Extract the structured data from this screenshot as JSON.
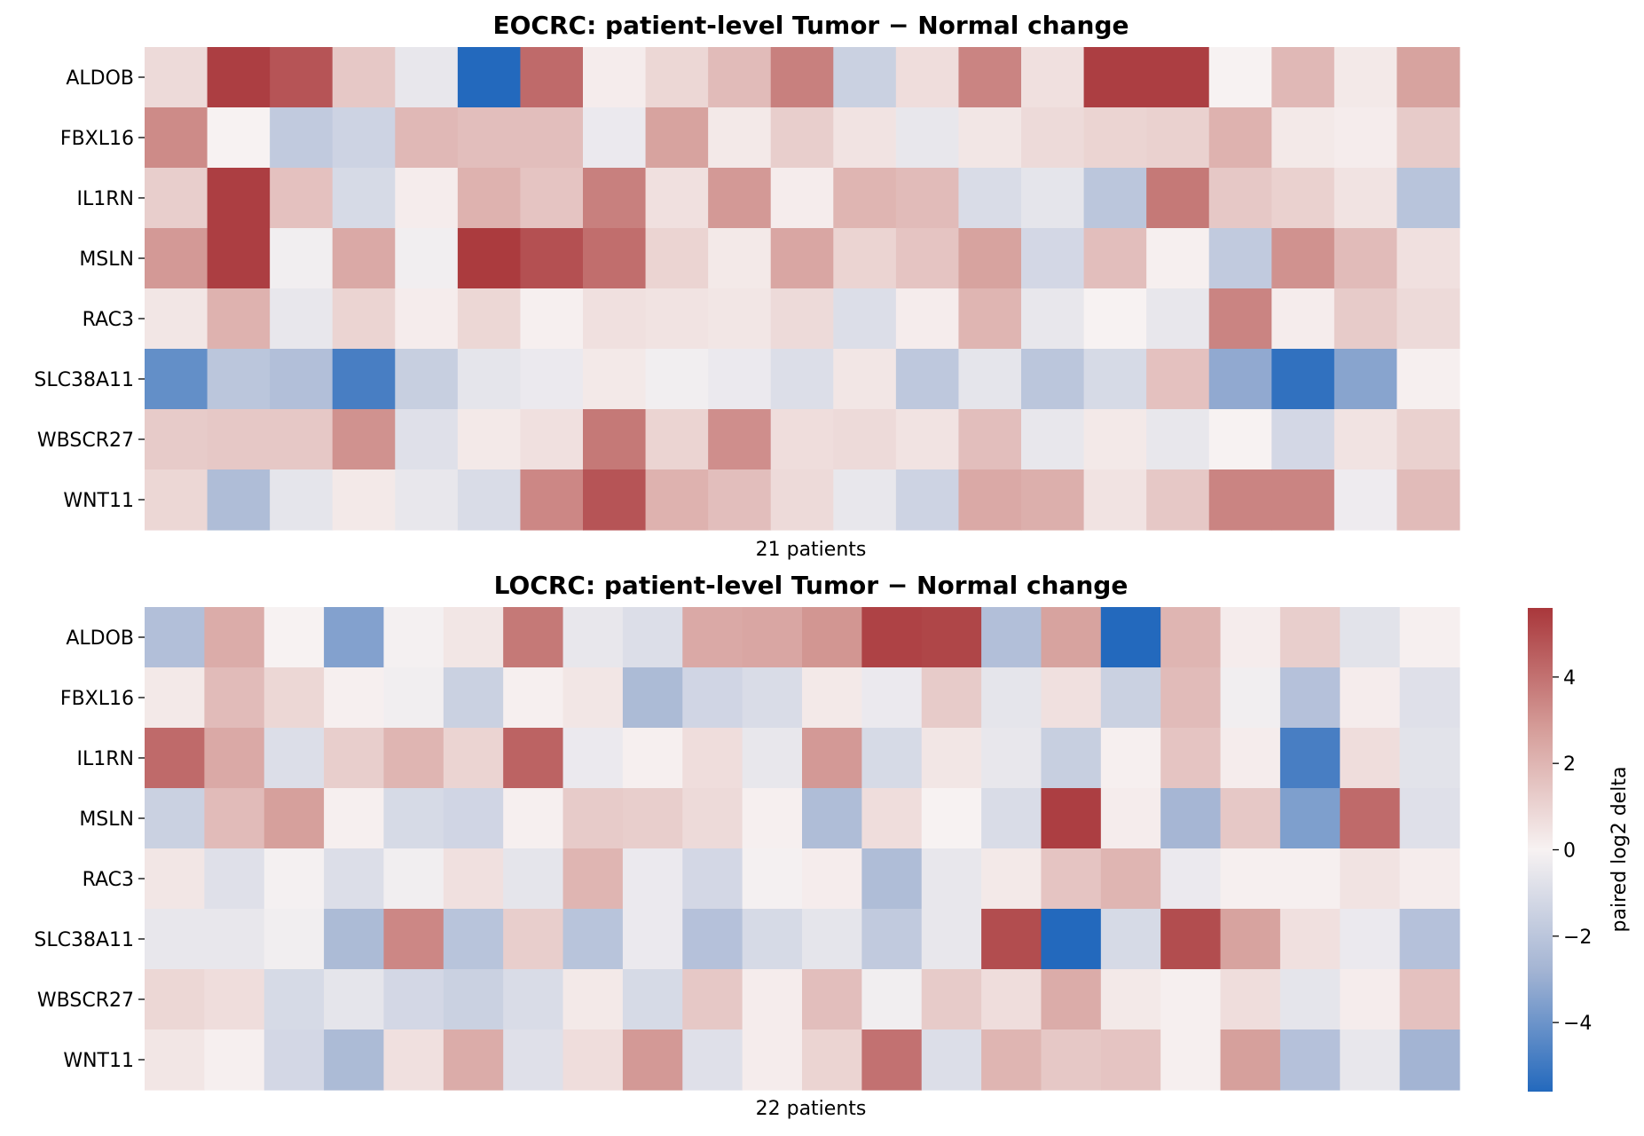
{
  "chart_data": {
    "type": "heatmap",
    "colormap": {
      "name": "vlag",
      "vmin": -5.6,
      "vmax": 5.6,
      "stops": [
        {
          "v": -1.0,
          "color": "#2369bd"
        },
        {
          "v": -0.5,
          "color": "#a3b4d3"
        },
        {
          "v": 0.0,
          "color": "#f7f2f2"
        },
        {
          "v": 0.5,
          "color": "#d59d99"
        },
        {
          "v": 1.0,
          "color": "#a9373b"
        }
      ]
    },
    "colorbar": {
      "label": "paired log2 delta",
      "ticks": [
        4,
        2,
        0,
        -2,
        -4
      ],
      "tick_labels": [
        "4",
        "2",
        "0",
        "−2",
        "−4"
      ]
    },
    "panels": [
      {
        "title": "EOCRC: patient-level Tumor − Normal change",
        "xlabel": "21 patients",
        "genes": [
          "ALDOB",
          "FBXL16",
          "IL1RN",
          "MSLN",
          "RAC3",
          "SLC38A11",
          "WBSCR27",
          "WNT11"
        ],
        "values": [
          [
            0.8,
            5.4,
            4.8,
            1.4,
            -0.5,
            -5.6,
            4.2,
            0.2,
            0.9,
            1.8,
            3.6,
            -1.5,
            0.7,
            3.5,
            0.6,
            5.4,
            5.4,
            0.0,
            1.9,
            0.3,
            2.6
          ],
          [
            3.3,
            0.0,
            -1.8,
            -1.4,
            1.9,
            1.7,
            1.7,
            -0.4,
            2.6,
            0.3,
            1.2,
            0.5,
            -0.5,
            0.4,
            0.8,
            1.0,
            1.1,
            2.1,
            0.3,
            0.2,
            1.3
          ],
          [
            1.2,
            5.4,
            1.6,
            -1.1,
            0.2,
            2.1,
            1.5,
            3.6,
            0.6,
            2.9,
            0.2,
            2.0,
            1.8,
            -1.0,
            -0.6,
            -2.0,
            3.8,
            1.4,
            1.1,
            0.5,
            -2.1
          ],
          [
            2.9,
            5.4,
            -0.2,
            2.4,
            -0.2,
            5.5,
            4.9,
            4.1,
            1.0,
            0.3,
            2.5,
            1.0,
            1.5,
            2.6,
            -1.2,
            1.7,
            0.1,
            -1.8,
            3.1,
            1.8,
            0.6
          ],
          [
            0.4,
            2.1,
            -0.5,
            1.0,
            0.2,
            0.9,
            0.1,
            0.6,
            0.5,
            0.4,
            0.8,
            -0.9,
            0.2,
            2.0,
            -0.5,
            0.0,
            -0.5,
            3.5,
            0.2,
            1.3,
            0.8
          ],
          [
            -4.2,
            -2.0,
            -2.3,
            -4.8,
            -1.6,
            -0.6,
            -0.4,
            0.3,
            -0.2,
            -0.4,
            -0.9,
            0.4,
            -1.9,
            -0.6,
            -2.0,
            -1.1,
            1.6,
            -3.2,
            -5.3,
            -3.4,
            0.1
          ],
          [
            1.3,
            1.4,
            1.4,
            3.1,
            -0.8,
            0.3,
            0.6,
            3.8,
            1.0,
            3.2,
            0.7,
            0.8,
            0.5,
            1.7,
            -0.5,
            0.3,
            -0.5,
            0.0,
            -1.2,
            0.5,
            1.1
          ],
          [
            0.9,
            -2.4,
            -0.6,
            0.3,
            -0.5,
            -1.0,
            3.4,
            4.8,
            2.1,
            1.7,
            0.8,
            -0.5,
            -1.4,
            2.4,
            2.2,
            0.5,
            1.4,
            3.5,
            3.5,
            -0.3,
            1.8
          ]
        ]
      },
      {
        "title": "LOCRC: patient-level Tumor − Normal change",
        "xlabel": "22 patients",
        "genes": [
          "ALDOB",
          "FBXL16",
          "IL1RN",
          "MSLN",
          "RAC3",
          "SLC38A11",
          "WBSCR27",
          "WNT11"
        ],
        "values": [
          [
            -2.3,
            2.3,
            0.0,
            -3.5,
            -0.1,
            0.4,
            3.8,
            -0.5,
            -0.9,
            2.4,
            2.5,
            3.0,
            5.3,
            5.2,
            -2.3,
            2.6,
            -5.6,
            2.0,
            0.2,
            1.2,
            -0.7,
            0.1
          ],
          [
            0.3,
            1.8,
            0.9,
            0.1,
            -0.2,
            -1.5,
            0.1,
            0.4,
            -2.5,
            -1.3,
            -1.0,
            0.3,
            -0.4,
            1.3,
            -0.6,
            0.6,
            -1.5,
            1.8,
            -0.2,
            -2.2,
            0.2,
            -0.8
          ],
          [
            4.2,
            2.4,
            -0.9,
            1.2,
            2.0,
            1.0,
            4.4,
            -0.4,
            0.1,
            0.7,
            -0.5,
            2.9,
            -1.1,
            0.4,
            -0.5,
            -1.6,
            0.1,
            1.5,
            0.2,
            -4.8,
            0.7,
            -0.7
          ],
          [
            -1.5,
            1.8,
            2.7,
            0.1,
            -1.1,
            -1.3,
            0.1,
            1.3,
            1.2,
            0.8,
            0.1,
            -2.4,
            0.7,
            0.0,
            -1.0,
            5.4,
            0.2,
            -2.7,
            1.4,
            -3.6,
            4.2,
            -0.8
          ],
          [
            0.4,
            -0.8,
            -0.1,
            -0.9,
            -0.2,
            0.6,
            -0.6,
            2.0,
            -0.4,
            -1.2,
            -0.1,
            0.2,
            -2.4,
            -0.5,
            0.3,
            1.5,
            2.0,
            -0.4,
            0.1,
            0.1,
            0.5,
            0.2
          ],
          [
            -0.5,
            -0.5,
            -0.2,
            -2.5,
            3.4,
            -2.1,
            1.2,
            -2.1,
            -0.4,
            -2.2,
            -1.1,
            -0.6,
            -1.8,
            -0.5,
            5.0,
            -5.6,
            -1.1,
            5.0,
            2.6,
            0.6,
            -0.4,
            -2.2
          ],
          [
            0.9,
            0.7,
            -1.1,
            -0.6,
            -1.2,
            -1.5,
            -1.0,
            0.3,
            -1.1,
            1.4,
            0.2,
            1.7,
            -0.2,
            1.3,
            0.7,
            2.3,
            0.3,
            0.1,
            0.7,
            -0.6,
            0.2,
            1.6
          ],
          [
            0.4,
            0.1,
            -1.2,
            -2.5,
            0.6,
            2.3,
            -0.8,
            0.7,
            2.9,
            -0.8,
            0.2,
            1.0,
            4.0,
            -0.9,
            2.0,
            1.4,
            1.5,
            0.1,
            2.7,
            -2.2,
            -0.5,
            -2.8
          ]
        ]
      }
    ]
  }
}
